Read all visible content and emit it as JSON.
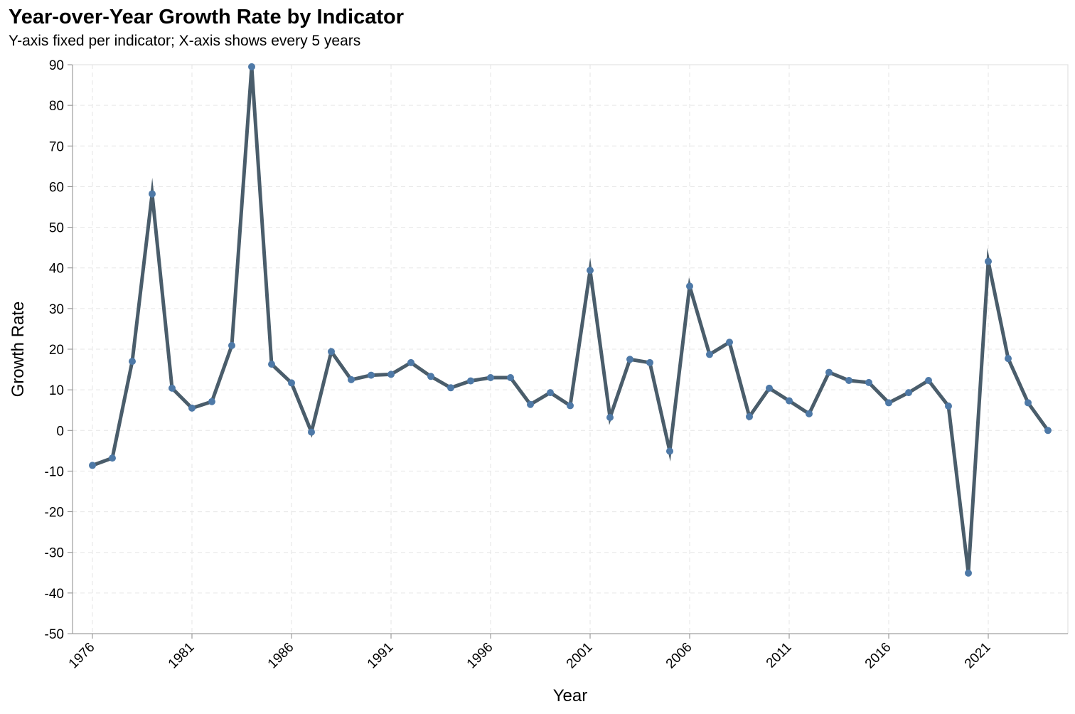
{
  "chart_data": {
    "type": "line",
    "title": "Year-over-Year Growth Rate by Indicator",
    "subtitle": "Y-axis fixed per indicator; X-axis shows every 5 years",
    "xlabel": "Year",
    "ylabel": "Growth Rate",
    "xlim": [
      1976,
      2024
    ],
    "ylim": [
      -50,
      90
    ],
    "x_ticks": [
      1976,
      1981,
      1986,
      1991,
      1996,
      2001,
      2006,
      2011,
      2016,
      2021
    ],
    "y_ticks": [
      -50,
      -40,
      -30,
      -20,
      -10,
      0,
      10,
      20,
      30,
      40,
      50,
      60,
      70,
      80,
      90
    ],
    "grid": true,
    "line_color": "#4a5d6b",
    "point_color": "#4e79a7",
    "x": [
      1976,
      1977,
      1978,
      1979,
      1980,
      1981,
      1982,
      1983,
      1984,
      1985,
      1986,
      1987,
      1988,
      1989,
      1990,
      1991,
      1992,
      1993,
      1994,
      1995,
      1996,
      1997,
      1998,
      1999,
      2000,
      2001,
      2002,
      2003,
      2004,
      2005,
      2006,
      2007,
      2008,
      2009,
      2010,
      2011,
      2012,
      2013,
      2014,
      2015,
      2016,
      2017,
      2018,
      2019,
      2020,
      2021,
      2022,
      2023,
      2024
    ],
    "values": [
      -8.6,
      -6.8,
      17.0,
      58.2,
      10.4,
      5.5,
      7.1,
      20.9,
      89.5,
      16.3,
      11.7,
      -0.4,
      19.4,
      12.5,
      13.6,
      13.8,
      16.7,
      13.3,
      10.5,
      12.2,
      13.0,
      13.0,
      6.4,
      9.3,
      6.1,
      39.4,
      3.2,
      17.5,
      16.7,
      -5.1,
      35.5,
      18.7,
      21.7,
      3.4,
      10.4,
      7.3,
      4.1,
      14.3,
      12.3,
      11.8,
      6.8,
      9.3,
      12.3,
      6.0,
      -35.1,
      41.6,
      17.7,
      6.8,
      0.0
    ]
  }
}
